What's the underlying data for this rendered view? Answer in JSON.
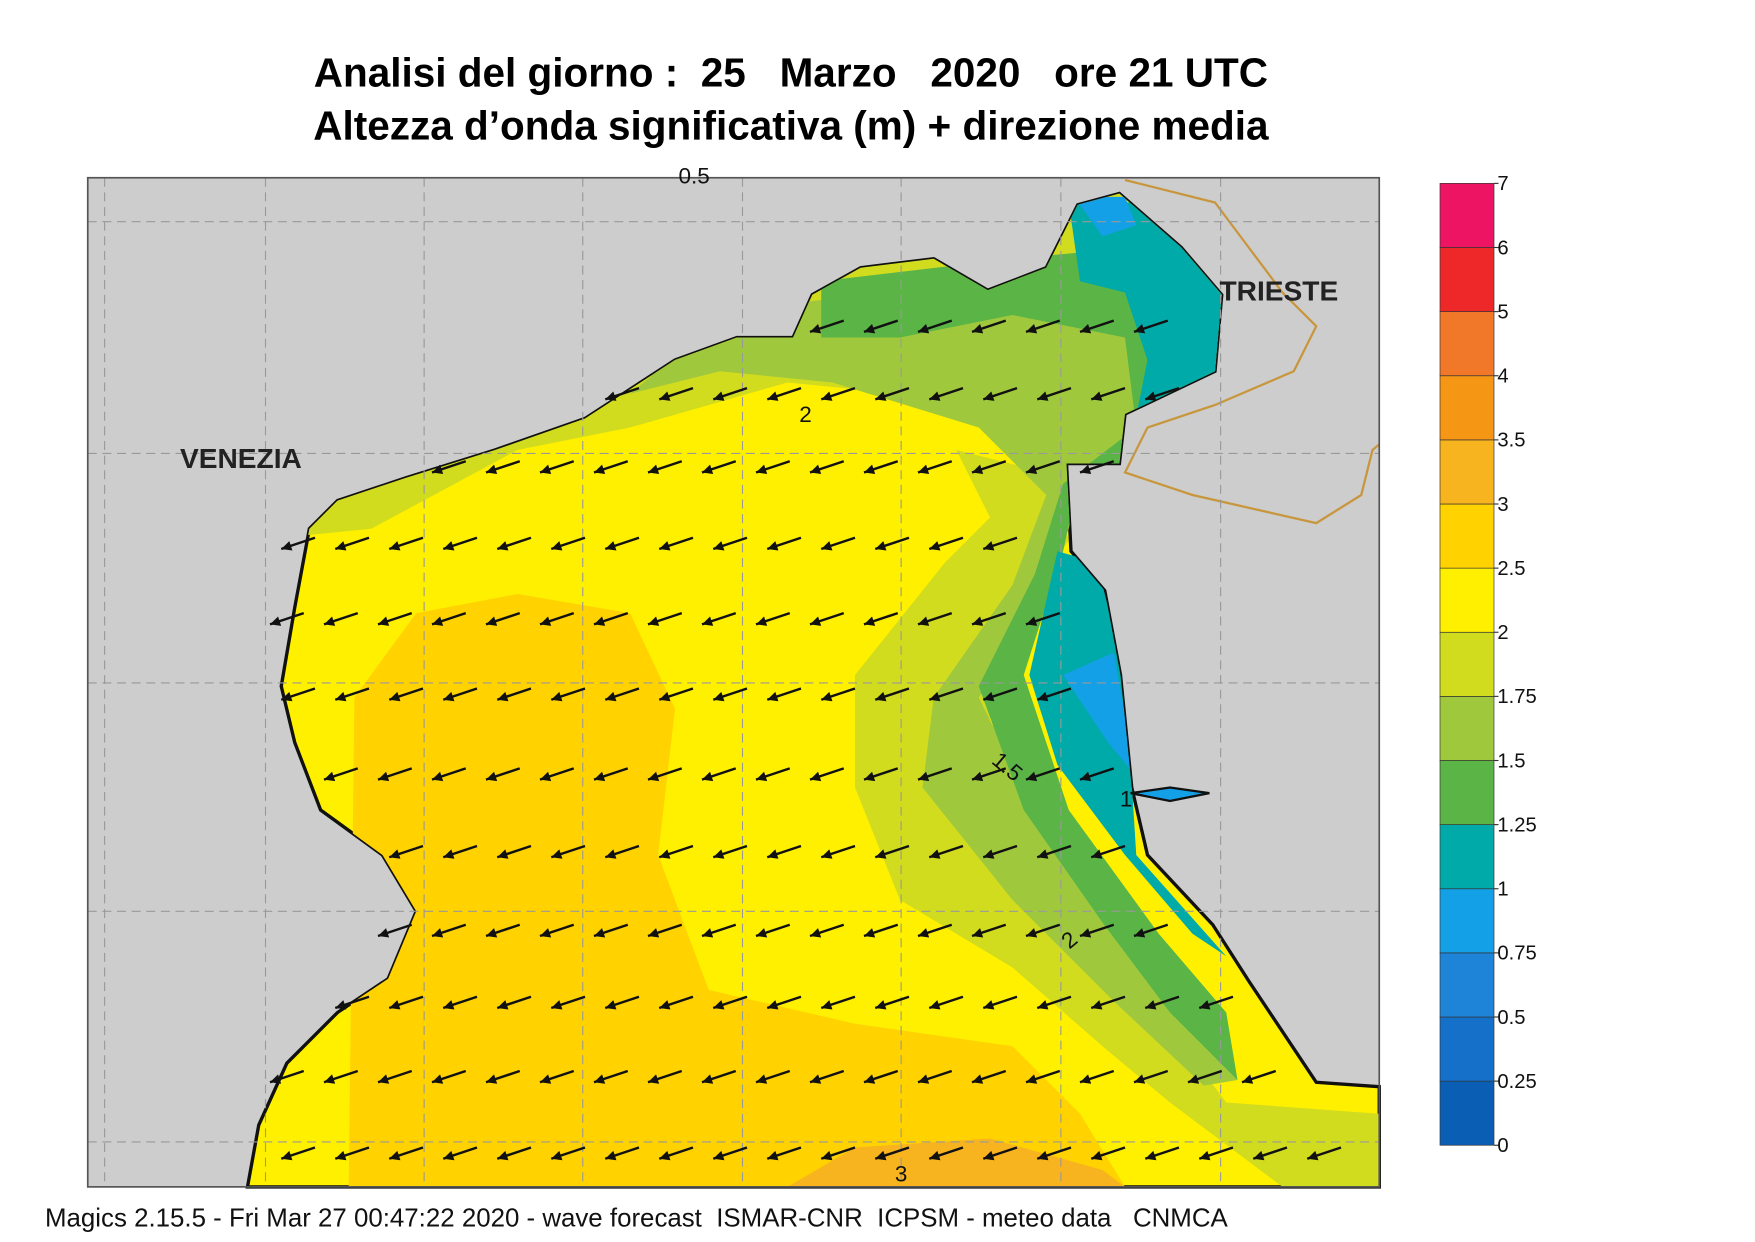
{
  "header": {
    "title": "Analisi del giorno :  25   Marzo   2020   ore 21 UTC",
    "subtitle": "Altezza d’onda significativa (m) + direzione media"
  },
  "places": [
    "VENEZIA",
    "TRIESTE"
  ],
  "contour_labels": [
    "0.5",
    "2",
    "1.5",
    "1",
    "2",
    "3"
  ],
  "colorbar": {
    "ticks": [
      0,
      0.25,
      0.5,
      0.75,
      1,
      1.25,
      1.5,
      1.75,
      2,
      2.5,
      3,
      3.5,
      4,
      5,
      6,
      7
    ],
    "colors": [
      "#0a5fb4",
      "#1470c8",
      "#1e84d8",
      "#14a0e6",
      "#00aaa8",
      "#5ab446",
      "#a0c83c",
      "#d2dc1e",
      "#fff000",
      "#ffd200",
      "#f8b41e",
      "#f59614",
      "#f07828",
      "#ee2828",
      "#ee1464"
    ]
  },
  "footer": "Magics 2.15.5 - Fri Mar 27 00:47:22 2020 - wave forecast  ISMAR-CNR  ICPSM - meteo data   CNMCA"
}
